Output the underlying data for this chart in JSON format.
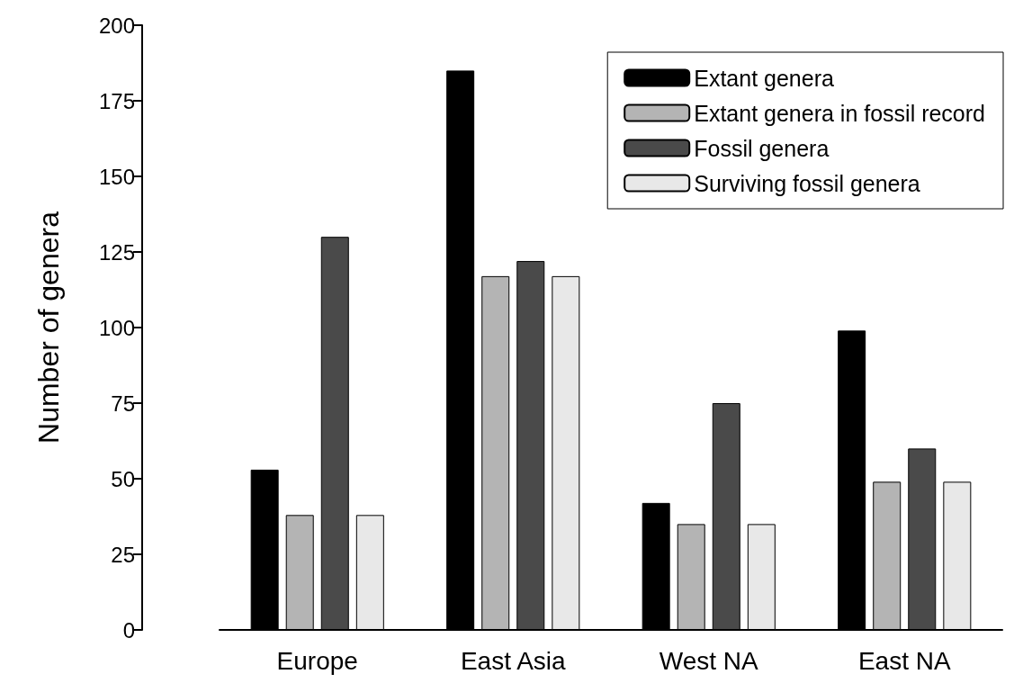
{
  "chart_data": {
    "type": "bar",
    "ylabel": "Number of genera",
    "categories": [
      "Europe",
      "East Asia",
      "West NA",
      "East NA"
    ],
    "series": [
      {
        "name": "Extant genera",
        "color": "#000000",
        "values": [
          53,
          185,
          42,
          99
        ]
      },
      {
        "name": "Extant genera in fossil record",
        "color": "#b4b4b4",
        "values": [
          38,
          117,
          35,
          49
        ]
      },
      {
        "name": "Fossil genera",
        "color": "#4a4a4a",
        "values": [
          130,
          122,
          75,
          60
        ]
      },
      {
        "name": "Surviving fossil genera",
        "color": "#e8e8e8",
        "values": [
          38,
          117,
          35,
          49
        ]
      }
    ],
    "ylim": [
      0,
      200
    ],
    "yticks": [
      0,
      25,
      50,
      75,
      100,
      125,
      150,
      175,
      200
    ],
    "grid": false,
    "legend": "top right"
  }
}
